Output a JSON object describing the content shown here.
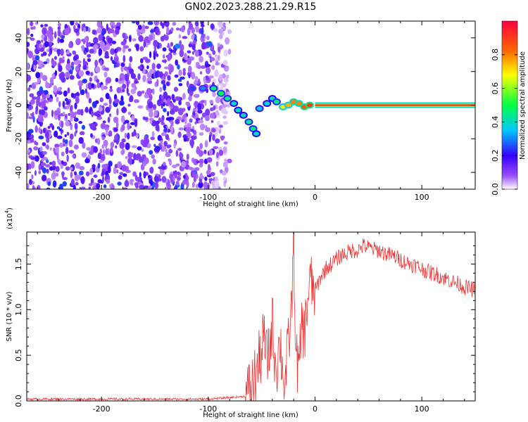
{
  "title": "GN02.2023.288.21.29.R15",
  "chart_data": [
    {
      "type": "heatmap",
      "xlabel": "Height of straight line (km)",
      "ylabel": "Frequency (Hz)",
      "xlim": [
        -270,
        150
      ],
      "ylim": [
        -50,
        50
      ],
      "xticks": [
        -200,
        -100,
        0,
        100
      ],
      "yticks": [
        -40,
        -20,
        0,
        20,
        40
      ],
      "colorbar": {
        "label": "Normalized spectral amplitude",
        "range": [
          0,
          1
        ],
        "ticks": [
          0.0,
          0.2,
          0.4,
          0.6,
          0.8
        ],
        "colors": [
          "#ffffff",
          "#9a4dff",
          "#3300ff",
          "#00c8ff",
          "#00ff44",
          "#ffff00",
          "#ff6a00",
          "#ff0040"
        ]
      },
      "features": {
        "noise_region_x": [
          -270,
          -95
        ],
        "carrier_line": {
          "x": [
            0,
            150
          ],
          "frequency": 0,
          "amplitude": 1.0
        },
        "dispersive_trace": [
          {
            "x": -115,
            "y": 10,
            "amp": 0.25
          },
          {
            "x": -105,
            "y": 10,
            "amp": 0.3
          },
          {
            "x": -95,
            "y": 10,
            "amp": 0.45
          },
          {
            "x": -88,
            "y": 7,
            "amp": 0.5
          },
          {
            "x": -82,
            "y": 4,
            "amp": 0.45
          },
          {
            "x": -76,
            "y": 1,
            "amp": 0.4
          },
          {
            "x": -72,
            "y": -3,
            "amp": 0.4
          },
          {
            "x": -67,
            "y": -6,
            "amp": 0.4
          },
          {
            "x": -62,
            "y": -10,
            "amp": 0.45
          },
          {
            "x": -58,
            "y": -14,
            "amp": 0.45
          },
          {
            "x": -55,
            "y": -17,
            "amp": 0.4
          },
          {
            "x": -52,
            "y": -2,
            "amp": 0.35
          },
          {
            "x": -45,
            "y": 1,
            "amp": 0.4
          },
          {
            "x": -40,
            "y": 4,
            "amp": 0.4
          },
          {
            "x": -36,
            "y": 2,
            "amp": 0.45
          },
          {
            "x": -30,
            "y": -1,
            "amp": 0.7
          },
          {
            "x": -25,
            "y": 0,
            "amp": 0.75
          },
          {
            "x": -20,
            "y": 2,
            "amp": 0.8
          },
          {
            "x": -15,
            "y": 1,
            "amp": 0.8
          },
          {
            "x": -10,
            "y": -1,
            "amp": 0.85
          },
          {
            "x": -5,
            "y": 0,
            "amp": 0.9
          }
        ]
      }
    },
    {
      "type": "line",
      "xlabel": "Height of straight line (km)",
      "ylabel": "SNR (10 * v/v)",
      "multiplier_label": "(x10",
      "multiplier_exp": "4",
      "multiplier_close": ")",
      "xlim": [
        -270,
        150
      ],
      "ylim": [
        0,
        1.85
      ],
      "xticks": [
        -200,
        -100,
        0,
        100
      ],
      "yticks": [
        0.0,
        0.5,
        1.0,
        1.5
      ],
      "ytick_labels": [
        "0.0",
        "0.5",
        "1.0",
        "1.5"
      ],
      "color": "#ee3333",
      "series": [
        {
          "x": [
            -270,
            -200,
            -100,
            -65,
            -60,
            -55,
            -50,
            -48,
            -45,
            -42,
            -40,
            -38,
            -35,
            -33,
            -30,
            -28,
            -25,
            -22,
            -20,
            -18,
            -15,
            -12,
            -10,
            -8,
            -5,
            0,
            5,
            10,
            15,
            20,
            25,
            30,
            35,
            40,
            45,
            50,
            55,
            60,
            65,
            70,
            75,
            80,
            85,
            90,
            95,
            100,
            105,
            110,
            115,
            120,
            125,
            130,
            135,
            140,
            145,
            150
          ],
          "y": [
            0.02,
            0.02,
            0.02,
            0.05,
            0.15,
            0.3,
            0.55,
            0.7,
            0.45,
            0.6,
            0.9,
            0.5,
            0.4,
            0.7,
            0.3,
            0.2,
            0.6,
            1.0,
            1.8,
            0.5,
            0.3,
            0.9,
            0.7,
            1.0,
            1.3,
            1.2,
            1.35,
            1.45,
            1.5,
            1.55,
            1.6,
            1.62,
            1.65,
            1.65,
            1.7,
            1.68,
            1.66,
            1.65,
            1.62,
            1.6,
            1.58,
            1.55,
            1.52,
            1.5,
            1.48,
            1.45,
            1.42,
            1.4,
            1.38,
            1.35,
            1.33,
            1.3,
            1.28,
            1.25,
            1.23,
            1.22
          ]
        }
      ]
    }
  ]
}
